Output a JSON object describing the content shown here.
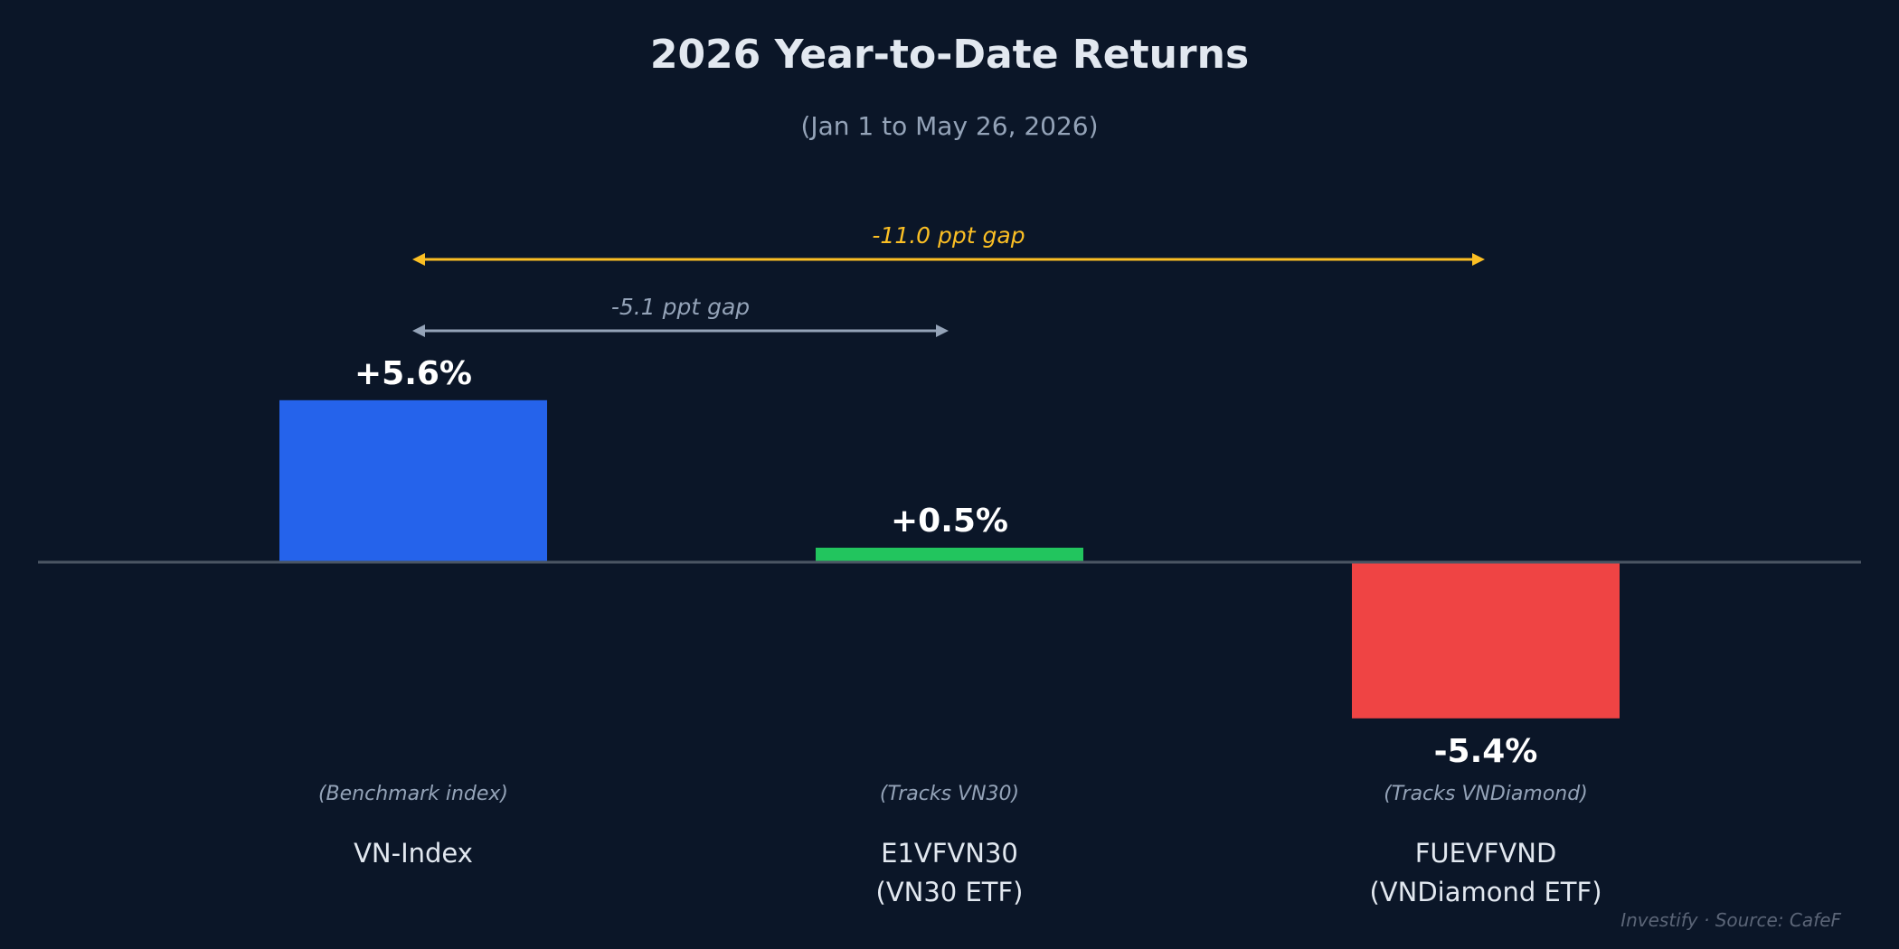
{
  "colors": {
    "background": "#0b1628",
    "title": "#e2e8f0",
    "subtitle": "#94a3b8",
    "value_label": "#ffffff",
    "category_label": "#e2e8f0",
    "note_label": "#94a3b8",
    "baseline": "#4b5563",
    "gap_major": "#fbbf24",
    "gap_minor": "#94a3b8",
    "footer": "#5b6577"
  },
  "chart_data": {
    "type": "bar",
    "title": "2026 Year-to-Date Returns",
    "subtitle": "(Jan 1 to May 26, 2026)",
    "xlabel": "",
    "ylabel": "",
    "unit": "%",
    "ylim": [
      -7.5,
      8.5
    ],
    "grid": false,
    "categories": [
      {
        "name_lines": [
          "VN-Index"
        ],
        "note": "(Benchmark index)"
      },
      {
        "name_lines": [
          "E1VFVN30",
          "(VN30 ETF)"
        ],
        "note": "(Tracks VN30)"
      },
      {
        "name_lines": [
          "FUEVFVND",
          "(VNDiamond ETF)"
        ],
        "note": "(Tracks VNDiamond)"
      }
    ],
    "values": [
      5.6,
      0.5,
      -5.4
    ],
    "value_labels": [
      "+5.6%",
      "+0.5%",
      "-5.4%"
    ],
    "bar_colors": [
      "#2563eb",
      "#22c55e",
      "#ef4444"
    ],
    "annotations": [
      {
        "text": "-11.0 ppt gap",
        "from_category": 0,
        "to_category": 2,
        "color": "#fbbf24",
        "tier": 0
      },
      {
        "text": "-5.1 ppt gap",
        "from_category": 0,
        "to_category": 1,
        "color": "#94a3b8",
        "tier": 1
      }
    ]
  },
  "footer": "Investify · Source: CafeF"
}
